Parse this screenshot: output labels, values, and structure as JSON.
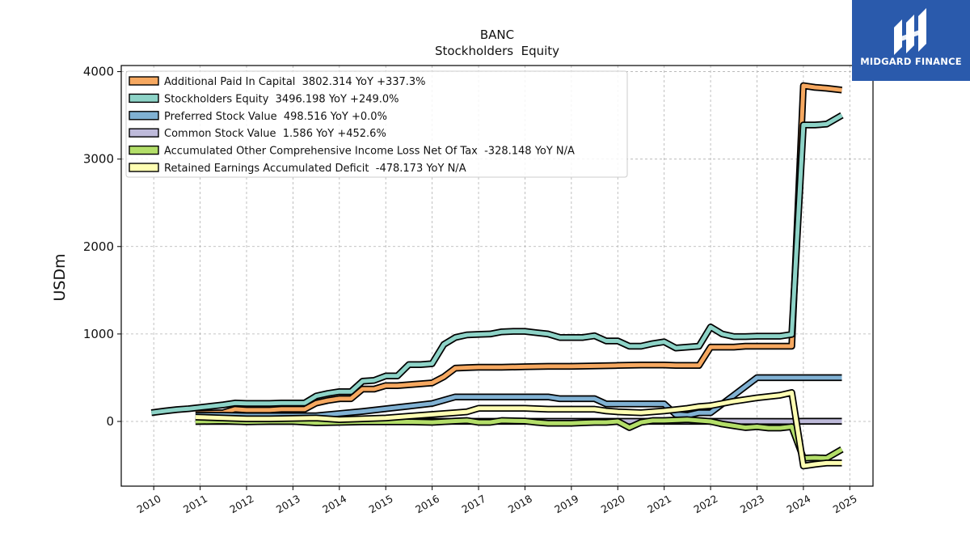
{
  "logo": {
    "text": "MIDGARD FINANCE",
    "icon": "midgard-logo-icon",
    "bg_color": "#2a5aac"
  },
  "chart_data": {
    "type": "line",
    "title": "BANC",
    "subtitle": "Stockholders  Equity",
    "ylabel": "USDm",
    "xlabel": "",
    "xlim": [
      2009.3,
      2025.5
    ],
    "ylim": [
      -740,
      4070
    ],
    "yticks": [
      0,
      1000,
      2000,
      3000,
      4000
    ],
    "xticks": [
      2010,
      2011,
      2012,
      2013,
      2014,
      2015,
      2016,
      2017,
      2018,
      2019,
      2020,
      2021,
      2022,
      2023,
      2024,
      2025
    ],
    "grid": true,
    "legend_position": "top-left",
    "series": [
      {
        "name": "Additional Paid In Capital  3802.314 YoY +337.3%",
        "color": "#f6a860",
        "points": [
          [
            2010.9,
            90
          ],
          [
            2011.5,
            100
          ],
          [
            2011.75,
            140
          ],
          [
            2012.0,
            130
          ],
          [
            2012.5,
            130
          ],
          [
            2012.75,
            140
          ],
          [
            2013.0,
            140
          ],
          [
            2013.25,
            140
          ],
          [
            2013.5,
            210
          ],
          [
            2013.75,
            240
          ],
          [
            2014.0,
            260
          ],
          [
            2014.25,
            260
          ],
          [
            2014.5,
            370
          ],
          [
            2014.75,
            370
          ],
          [
            2015.0,
            410
          ],
          [
            2015.25,
            410
          ],
          [
            2015.5,
            420
          ],
          [
            2015.75,
            430
          ],
          [
            2016.0,
            440
          ],
          [
            2016.25,
            510
          ],
          [
            2016.5,
            610
          ],
          [
            2016.75,
            615
          ],
          [
            2017.0,
            620
          ],
          [
            2017.5,
            620
          ],
          [
            2018.0,
            625
          ],
          [
            2018.5,
            630
          ],
          [
            2019.0,
            630
          ],
          [
            2019.5,
            635
          ],
          [
            2020.0,
            640
          ],
          [
            2020.5,
            645
          ],
          [
            2021.0,
            645
          ],
          [
            2021.25,
            640
          ],
          [
            2021.75,
            640
          ],
          [
            2022.0,
            850
          ],
          [
            2022.25,
            850
          ],
          [
            2022.5,
            850
          ],
          [
            2022.75,
            860
          ],
          [
            2023.0,
            860
          ],
          [
            2023.25,
            860
          ],
          [
            2023.5,
            860
          ],
          [
            2023.75,
            860
          ],
          [
            2024.0,
            3840
          ],
          [
            2024.25,
            3820
          ],
          [
            2024.5,
            3810
          ],
          [
            2024.83,
            3790
          ]
        ]
      },
      {
        "name": "Stockholders Equity  3496.198 YoY +249.0%",
        "color": "#8dd3c7",
        "points": [
          [
            2009.95,
            100
          ],
          [
            2010.25,
            120
          ],
          [
            2010.5,
            135
          ],
          [
            2010.75,
            145
          ],
          [
            2011.0,
            160
          ],
          [
            2011.25,
            175
          ],
          [
            2011.5,
            190
          ],
          [
            2011.75,
            210
          ],
          [
            2012.0,
            205
          ],
          [
            2012.25,
            205
          ],
          [
            2012.5,
            205
          ],
          [
            2012.75,
            210
          ],
          [
            2013.0,
            210
          ],
          [
            2013.25,
            210
          ],
          [
            2013.5,
            290
          ],
          [
            2013.75,
            320
          ],
          [
            2014.0,
            340
          ],
          [
            2014.25,
            340
          ],
          [
            2014.5,
            460
          ],
          [
            2014.75,
            470
          ],
          [
            2015.0,
            520
          ],
          [
            2015.25,
            520
          ],
          [
            2015.5,
            650
          ],
          [
            2015.75,
            650
          ],
          [
            2016.0,
            660
          ],
          [
            2016.25,
            880
          ],
          [
            2016.5,
            960
          ],
          [
            2016.75,
            990
          ],
          [
            2017.0,
            995
          ],
          [
            2017.25,
            1000
          ],
          [
            2017.5,
            1025
          ],
          [
            2017.75,
            1030
          ],
          [
            2018.0,
            1030
          ],
          [
            2018.25,
            1015
          ],
          [
            2018.5,
            1000
          ],
          [
            2018.75,
            960
          ],
          [
            2019.0,
            960
          ],
          [
            2019.25,
            960
          ],
          [
            2019.5,
            980
          ],
          [
            2019.75,
            920
          ],
          [
            2020.0,
            920
          ],
          [
            2020.25,
            860
          ],
          [
            2020.5,
            860
          ],
          [
            2020.75,
            890
          ],
          [
            2021.0,
            910
          ],
          [
            2021.25,
            840
          ],
          [
            2021.5,
            850
          ],
          [
            2021.75,
            860
          ],
          [
            2022.0,
            1080
          ],
          [
            2022.25,
            1000
          ],
          [
            2022.5,
            970
          ],
          [
            2022.75,
            970
          ],
          [
            2023.0,
            975
          ],
          [
            2023.25,
            975
          ],
          [
            2023.5,
            975
          ],
          [
            2023.75,
            995
          ],
          [
            2024.0,
            3390
          ],
          [
            2024.25,
            3390
          ],
          [
            2024.5,
            3400
          ],
          [
            2024.83,
            3500
          ]
        ]
      },
      {
        "name": "Preferred Stock Value  498.516 YoY +0.0%",
        "color": "#80b1d3",
        "points": [
          [
            2010.9,
            70
          ],
          [
            2011.5,
            70
          ],
          [
            2012.0,
            65
          ],
          [
            2013.0,
            65
          ],
          [
            2013.5,
            65
          ],
          [
            2014.0,
            90
          ],
          [
            2014.5,
            115
          ],
          [
            2015.0,
            145
          ],
          [
            2015.5,
            175
          ],
          [
            2016.0,
            205
          ],
          [
            2016.5,
            280
          ],
          [
            2017.0,
            280
          ],
          [
            2017.5,
            280
          ],
          [
            2018.0,
            280
          ],
          [
            2018.5,
            280
          ],
          [
            2018.75,
            260
          ],
          [
            2019.0,
            260
          ],
          [
            2019.5,
            260
          ],
          [
            2019.75,
            200
          ],
          [
            2020.0,
            200
          ],
          [
            2020.5,
            200
          ],
          [
            2021.0,
            200
          ],
          [
            2021.25,
            80
          ],
          [
            2021.5,
            70
          ],
          [
            2021.75,
            100
          ],
          [
            2022.0,
            100
          ],
          [
            2022.5,
            300
          ],
          [
            2023.0,
            500
          ],
          [
            2023.5,
            500
          ],
          [
            2024.0,
            500
          ],
          [
            2024.83,
            500
          ]
        ]
      },
      {
        "name": "Common Stock Value  1.586 YoY +452.6%",
        "color": "#bebada",
        "points": [
          [
            2010.9,
            0.3
          ],
          [
            2012.0,
            0.3
          ],
          [
            2014.0,
            0.4
          ],
          [
            2016.0,
            0.5
          ],
          [
            2018.0,
            0.5
          ],
          [
            2020.0,
            0.5
          ],
          [
            2022.0,
            0.5
          ],
          [
            2023.75,
            0.3
          ],
          [
            2024.0,
            1.5
          ],
          [
            2024.83,
            1.6
          ]
        ]
      },
      {
        "name": "Accumulated Other Comprehensive Income Loss Net Of Tax  -328.148 YoY N/A",
        "color": "#b3de69",
        "points": [
          [
            2010.9,
            0
          ],
          [
            2011.5,
            5
          ],
          [
            2012.0,
            -5
          ],
          [
            2012.5,
            0
          ],
          [
            2013.0,
            0
          ],
          [
            2013.5,
            -15
          ],
          [
            2014.0,
            -10
          ],
          [
            2014.5,
            -5
          ],
          [
            2015.0,
            -5
          ],
          [
            2015.5,
            -5
          ],
          [
            2016.0,
            -10
          ],
          [
            2016.5,
            5
          ],
          [
            2016.75,
            10
          ],
          [
            2017.0,
            -10
          ],
          [
            2017.25,
            -10
          ],
          [
            2017.5,
            10
          ],
          [
            2018.0,
            5
          ],
          [
            2018.25,
            -10
          ],
          [
            2018.5,
            -20
          ],
          [
            2019.0,
            -20
          ],
          [
            2019.25,
            -15
          ],
          [
            2019.5,
            -10
          ],
          [
            2019.75,
            -10
          ],
          [
            2020.0,
            0
          ],
          [
            2020.25,
            -70
          ],
          [
            2020.5,
            -10
          ],
          [
            2020.75,
            10
          ],
          [
            2021.0,
            10
          ],
          [
            2021.5,
            20
          ],
          [
            2021.75,
            10
          ],
          [
            2022.0,
            0
          ],
          [
            2022.25,
            -30
          ],
          [
            2022.5,
            -50
          ],
          [
            2022.75,
            -70
          ],
          [
            2023.0,
            -60
          ],
          [
            2023.25,
            -75
          ],
          [
            2023.5,
            -75
          ],
          [
            2023.75,
            -60
          ],
          [
            2024.0,
            -420
          ],
          [
            2024.25,
            -415
          ],
          [
            2024.5,
            -420
          ],
          [
            2024.83,
            -320
          ]
        ]
      },
      {
        "name": "Retained Earnings Accumulated Deficit  -478.173 YoY N/A",
        "color": "#ffffb3",
        "points": [
          [
            2010.9,
            50
          ],
          [
            2011.5,
            40
          ],
          [
            2012.0,
            30
          ],
          [
            2012.5,
            30
          ],
          [
            2013.0,
            35
          ],
          [
            2013.5,
            40
          ],
          [
            2014.0,
            20
          ],
          [
            2014.5,
            30
          ],
          [
            2015.0,
            40
          ],
          [
            2015.5,
            60
          ],
          [
            2016.0,
            80
          ],
          [
            2016.5,
            100
          ],
          [
            2016.75,
            110
          ],
          [
            2017.0,
            150
          ],
          [
            2017.5,
            150
          ],
          [
            2018.0,
            150
          ],
          [
            2018.5,
            140
          ],
          [
            2019.0,
            140
          ],
          [
            2019.5,
            140
          ],
          [
            2019.75,
            120
          ],
          [
            2020.0,
            110
          ],
          [
            2020.5,
            100
          ],
          [
            2021.0,
            120
          ],
          [
            2021.5,
            150
          ],
          [
            2021.75,
            170
          ],
          [
            2022.0,
            180
          ],
          [
            2022.5,
            230
          ],
          [
            2023.0,
            270
          ],
          [
            2023.5,
            300
          ],
          [
            2023.75,
            330
          ],
          [
            2024.0,
            -510
          ],
          [
            2024.25,
            -490
          ],
          [
            2024.5,
            -475
          ],
          [
            2024.83,
            -475
          ]
        ]
      }
    ]
  }
}
